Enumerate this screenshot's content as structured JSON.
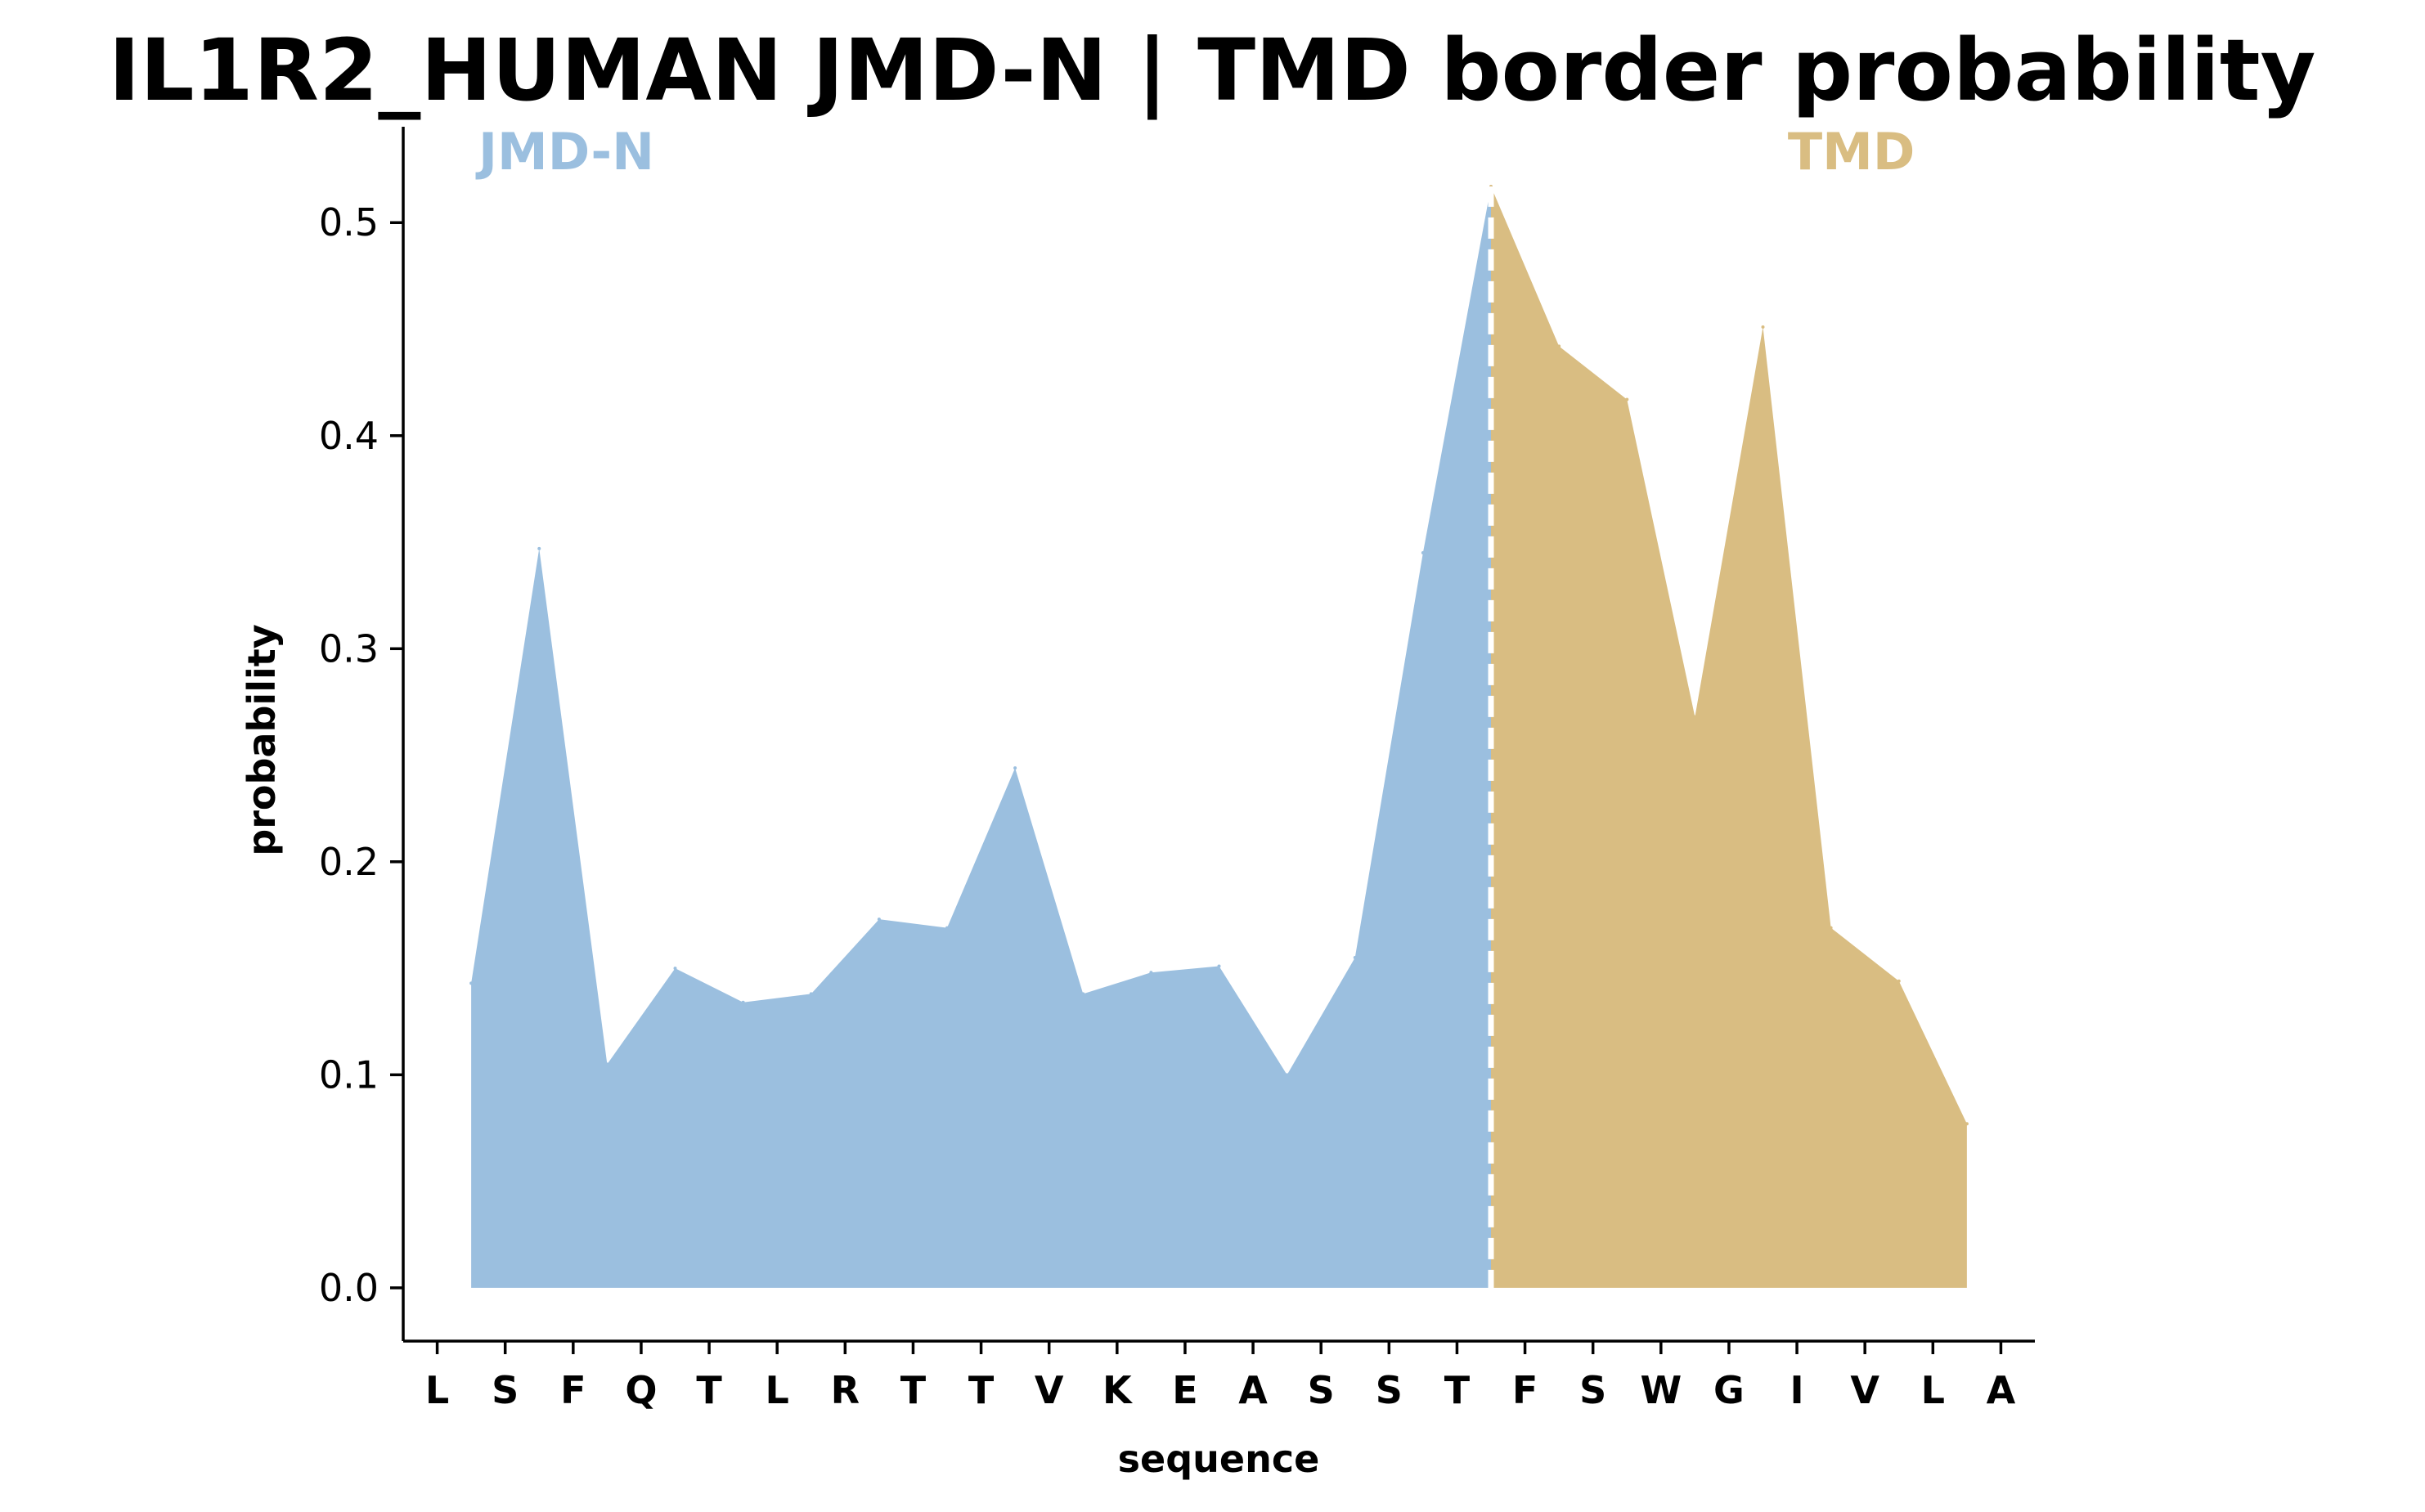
{
  "chart_data": {
    "type": "area",
    "title": "IL1R2_HUMAN JMD-N | TMD border probability",
    "xlabel": "sequence",
    "ylabel": "probability",
    "ylim": [
      -0.025,
      0.545
    ],
    "yticks": [
      "0.0",
      "0.1",
      "0.2",
      "0.3",
      "0.4",
      "0.5"
    ],
    "grid": false,
    "categories": [
      "L",
      "S",
      "F",
      "Q",
      "T",
      "L",
      "R",
      "T",
      "T",
      "V",
      "K",
      "E",
      "A",
      "S",
      "S",
      "T",
      "F",
      "S",
      "W",
      "G",
      "I",
      "V",
      "L",
      "A"
    ],
    "x": [
      0.5,
      1.5,
      2.5,
      3.5,
      4.5,
      5.5,
      6.5,
      7.5,
      8.5,
      9.5,
      10.5,
      11.5,
      12.5,
      13.5,
      14.5,
      15.5,
      16.5,
      17.5,
      18.5,
      19.5,
      20.5,
      21.5,
      22.5
    ],
    "values": [
      0.143,
      0.347,
      0.105,
      0.15,
      0.134,
      0.138,
      0.173,
      0.169,
      0.244,
      0.138,
      0.148,
      0.151,
      0.1,
      0.155,
      0.345,
      0.517,
      0.442,
      0.417,
      0.268,
      0.451,
      0.169,
      0.144,
      0.077
    ],
    "border_x": 15.5,
    "regions": [
      {
        "label": "JMD-N",
        "color": "#9bbfdf"
      },
      {
        "label": "TMD",
        "color": "#d9bd82"
      }
    ],
    "border_line_color": "#ffffff"
  }
}
